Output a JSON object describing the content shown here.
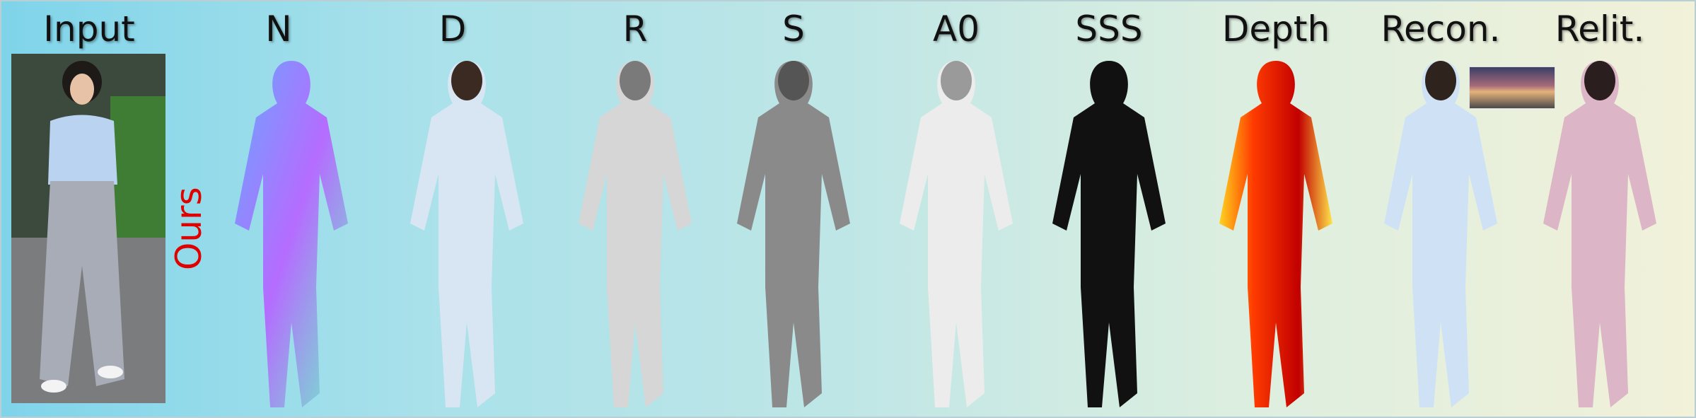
{
  "columns": [
    "Input",
    "N",
    "D",
    "R",
    "S",
    "A0",
    "SSS",
    "Depth",
    "Recon.",
    "Relit."
  ],
  "row_label": "Ours"
}
